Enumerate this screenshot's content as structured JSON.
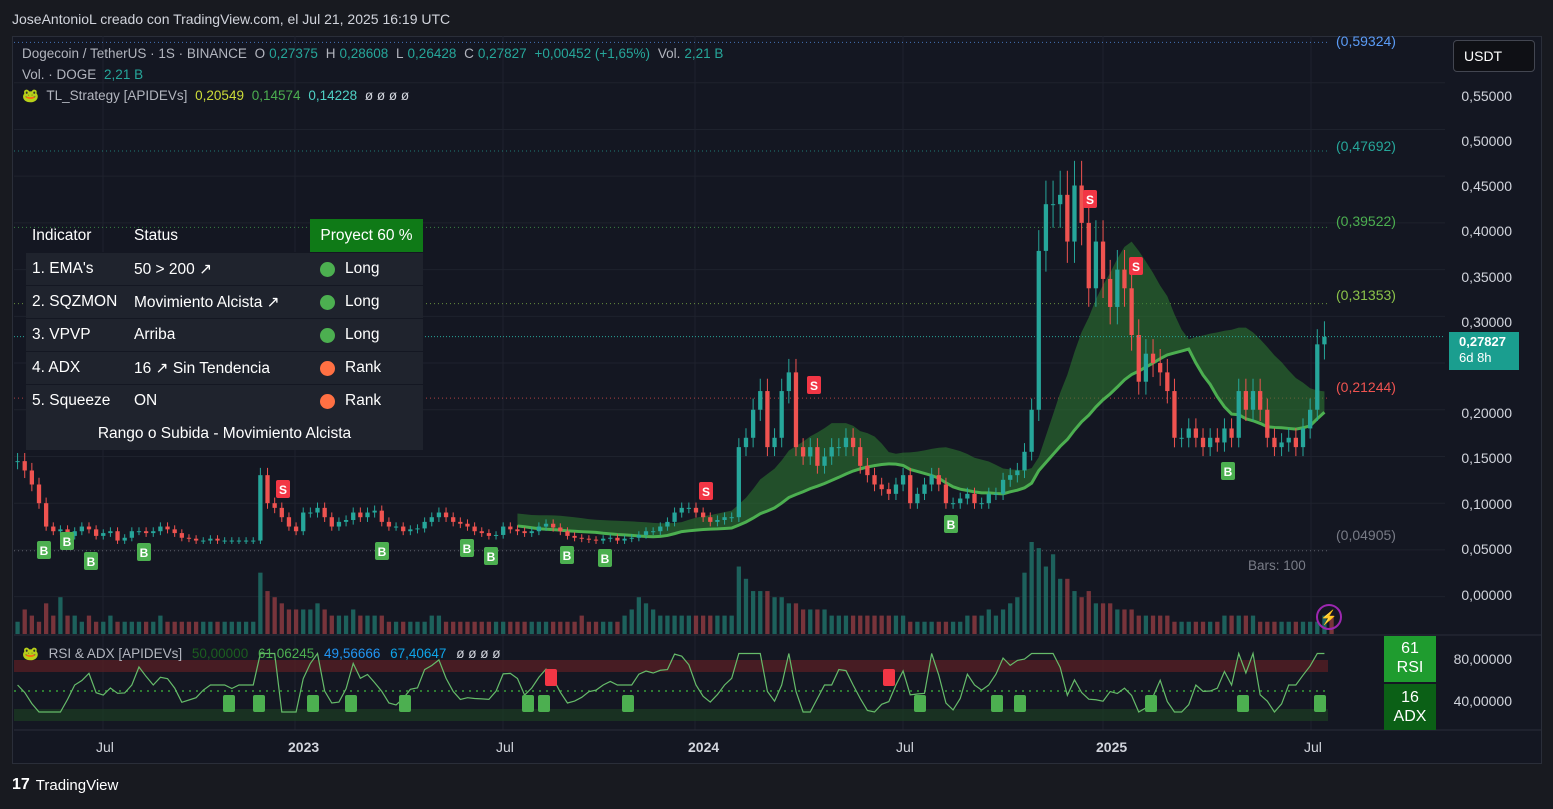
{
  "header": {
    "credit": "JoseAntonioL creado con TradingView.com, el Jul 21, 2025 16:19 UTC"
  },
  "legend": {
    "symbol": "Dogecoin / TetherUS · 1S · BINANCE",
    "o_label": "O",
    "o": "0,27375",
    "h_label": "H",
    "h": "0,28608",
    "l_label": "L",
    "l": "0,26428",
    "c_label": "C",
    "c": "0,27827",
    "change": "+0,00452 (+1,65%)",
    "vol_label": "Vol.",
    "vol": "2,21 B",
    "vol_doge_label": "Vol. · DOGE",
    "vol_doge": "2,21 B",
    "strategy_name": "TL_Strategy [APIDEVs]",
    "strategy_v1": "0,20549",
    "strategy_v2": "0,14574",
    "strategy_v3": "0,14228",
    "strategy_empty": "ø ø ø ø"
  },
  "table": {
    "headers": [
      "Indicator",
      "Status",
      "Proyect 60 %"
    ],
    "rows": [
      {
        "indicator": "1. EMA's",
        "status": "50 > 200 ↗",
        "signal": "Long",
        "color": "#4caf50"
      },
      {
        "indicator": "2. SQZMON",
        "status": "Movimiento Alcista ↗",
        "signal": "Long",
        "color": "#4caf50"
      },
      {
        "indicator": "3. VPVP",
        "status": "Arriba",
        "signal": "Long",
        "color": "#4caf50"
      },
      {
        "indicator": "4. ADX",
        "status": "16 ↗ Sin Tendencia",
        "signal": "Rank",
        "color": "#ff7043"
      },
      {
        "indicator": "5. Squeeze",
        "status": "ON",
        "signal": "Rank",
        "color": "#ff7043"
      }
    ],
    "summary": "Rango o Subida - Movimiento Alcista"
  },
  "price_axis": {
    "currency_button": "USDT",
    "ticks": [
      "0,55000",
      "0,50000",
      "0,45000",
      "0,40000",
      "0,35000",
      "0,30000",
      "0,20000",
      "0,15000",
      "0,10000",
      "0,05000",
      "0,00000"
    ],
    "current_price": "0,27827",
    "countdown": "6d 8h",
    "levels": [
      {
        "label": "(0,59324)",
        "color": "#5b9cf6"
      },
      {
        "label": "(0,47692)",
        "color": "#26a69a"
      },
      {
        "label": "(0,39522)",
        "color": "#4caf50"
      },
      {
        "label": "(0,31353)",
        "color": "#8bc34a"
      },
      {
        "label": "(0,21244)",
        "color": "#ef5350"
      },
      {
        "label": "(0,04905)",
        "color": "#787b86"
      }
    ],
    "bars_note": "Bars: 100"
  },
  "time_axis": {
    "labels": [
      "Jul",
      "2023",
      "Jul",
      "2024",
      "Jul",
      "2025",
      "Jul"
    ]
  },
  "rsi_panel": {
    "name": "RSI & ADX [APIDEVs]",
    "v1": "50,00000",
    "v2": "61,06245",
    "v3": "49,56666",
    "v4": "67,40647",
    "empty": "ø ø ø ø",
    "ticks": [
      "80,00000",
      "40,00000"
    ],
    "rsi_value": "61",
    "rsi_label": "RSI",
    "adx_value": "16",
    "adx_label": "ADX"
  },
  "footer": {
    "brand": "TradingView"
  },
  "colors": {
    "up": "#26a69a",
    "down": "#ef5350",
    "background": "#141722",
    "buy": "#4caf50",
    "sell": "#f23645"
  },
  "chart_data": {
    "type": "candlestick",
    "title": "Dogecoin / TetherUS · 1S · BINANCE",
    "timeframe": "1W",
    "ylim": [
      -0.04,
      0.6
    ],
    "x_range": [
      "2022-05",
      "2025-07"
    ],
    "close_series": [
      0.145,
      0.135,
      0.12,
      0.1,
      0.075,
      0.07,
      0.072,
      0.065,
      0.07,
      0.075,
      0.072,
      0.065,
      0.068,
      0.07,
      0.06,
      0.063,
      0.07,
      0.07,
      0.068,
      0.07,
      0.075,
      0.072,
      0.068,
      0.063,
      0.062,
      0.06,
      0.06,
      0.062,
      0.06,
      0.06,
      0.06,
      0.06,
      0.06,
      0.06,
      0.13,
      0.1,
      0.095,
      0.085,
      0.075,
      0.07,
      0.09,
      0.09,
      0.095,
      0.085,
      0.075,
      0.08,
      0.082,
      0.09,
      0.085,
      0.09,
      0.092,
      0.08,
      0.075,
      0.075,
      0.07,
      0.072,
      0.073,
      0.08,
      0.085,
      0.09,
      0.085,
      0.08,
      0.078,
      0.075,
      0.07,
      0.068,
      0.065,
      0.066,
      0.075,
      0.072,
      0.07,
      0.068,
      0.07,
      0.075,
      0.078,
      0.074,
      0.07,
      0.065,
      0.063,
      0.062,
      0.061,
      0.06,
      0.062,
      0.063,
      0.06,
      0.062,
      0.063,
      0.066,
      0.07,
      0.07,
      0.075,
      0.08,
      0.09,
      0.095,
      0.095,
      0.09,
      0.085,
      0.08,
      0.082,
      0.085,
      0.085,
      0.16,
      0.17,
      0.2,
      0.22,
      0.16,
      0.17,
      0.22,
      0.24,
      0.16,
      0.15,
      0.16,
      0.14,
      0.15,
      0.16,
      0.16,
      0.17,
      0.16,
      0.14,
      0.13,
      0.12,
      0.115,
      0.11,
      0.12,
      0.13,
      0.1,
      0.11,
      0.12,
      0.13,
      0.12,
      0.1,
      0.1,
      0.105,
      0.11,
      0.1,
      0.1,
      0.11,
      0.11,
      0.125,
      0.13,
      0.135,
      0.155,
      0.2,
      0.37,
      0.42,
      0.42,
      0.43,
      0.38,
      0.44,
      0.4,
      0.33,
      0.38,
      0.34,
      0.31,
      0.35,
      0.33,
      0.28,
      0.23,
      0.26,
      0.25,
      0.24,
      0.22,
      0.17,
      0.17,
      0.18,
      0.17,
      0.16,
      0.17,
      0.165,
      0.18,
      0.17,
      0.22,
      0.2,
      0.22,
      0.2,
      0.17,
      0.16,
      0.165,
      0.17,
      0.16,
      0.18,
      0.2,
      0.27,
      0.278
    ],
    "volume_series": [
      2,
      4,
      3,
      2,
      5,
      3,
      6,
      3,
      3,
      2,
      3,
      2,
      2,
      3,
      2,
      2,
      2,
      2,
      2,
      2,
      3,
      2,
      2,
      2,
      2,
      2,
      2,
      2,
      2,
      2,
      2,
      2,
      2,
      2,
      10,
      7,
      6,
      5,
      4,
      4,
      4,
      4,
      5,
      4,
      3,
      3,
      3,
      4,
      3,
      3,
      3,
      3,
      2,
      2,
      2,
      2,
      2,
      2,
      3,
      3,
      2,
      2,
      2,
      2,
      2,
      2,
      2,
      2,
      2,
      2,
      2,
      2,
      2,
      2,
      2,
      2,
      2,
      2,
      2,
      3,
      2,
      2,
      2,
      2,
      2,
      3,
      4,
      6,
      5,
      4,
      3,
      3,
      3,
      3,
      3,
      3,
      3,
      3,
      3,
      3,
      3,
      11,
      9,
      7,
      7,
      7,
      6,
      6,
      5,
      5,
      4,
      4,
      4,
      4,
      3,
      3,
      3,
      3,
      3,
      3,
      3,
      3,
      3,
      3,
      3,
      2,
      2,
      2,
      2,
      2,
      2,
      2,
      2,
      3,
      3,
      3,
      4,
      3,
      4,
      5,
      6,
      10,
      15,
      14,
      11,
      13,
      9,
      9,
      7,
      6,
      7,
      5,
      5,
      5,
      4,
      4,
      4,
      3,
      3,
      3,
      3,
      3,
      2,
      2,
      2,
      2,
      2,
      2,
      2,
      3,
      3,
      3,
      3,
      3,
      2,
      2,
      2,
      2,
      2,
      2,
      2,
      2,
      2,
      3,
      3
    ],
    "buy_signals": [
      "B",
      "B",
      "B",
      "B",
      "B",
      "B",
      "B",
      "B",
      "B",
      "B",
      "B"
    ],
    "sell_signals": [
      "S",
      "S",
      "S",
      "S",
      "S"
    ],
    "rsi_ticks": [
      80,
      40
    ]
  }
}
